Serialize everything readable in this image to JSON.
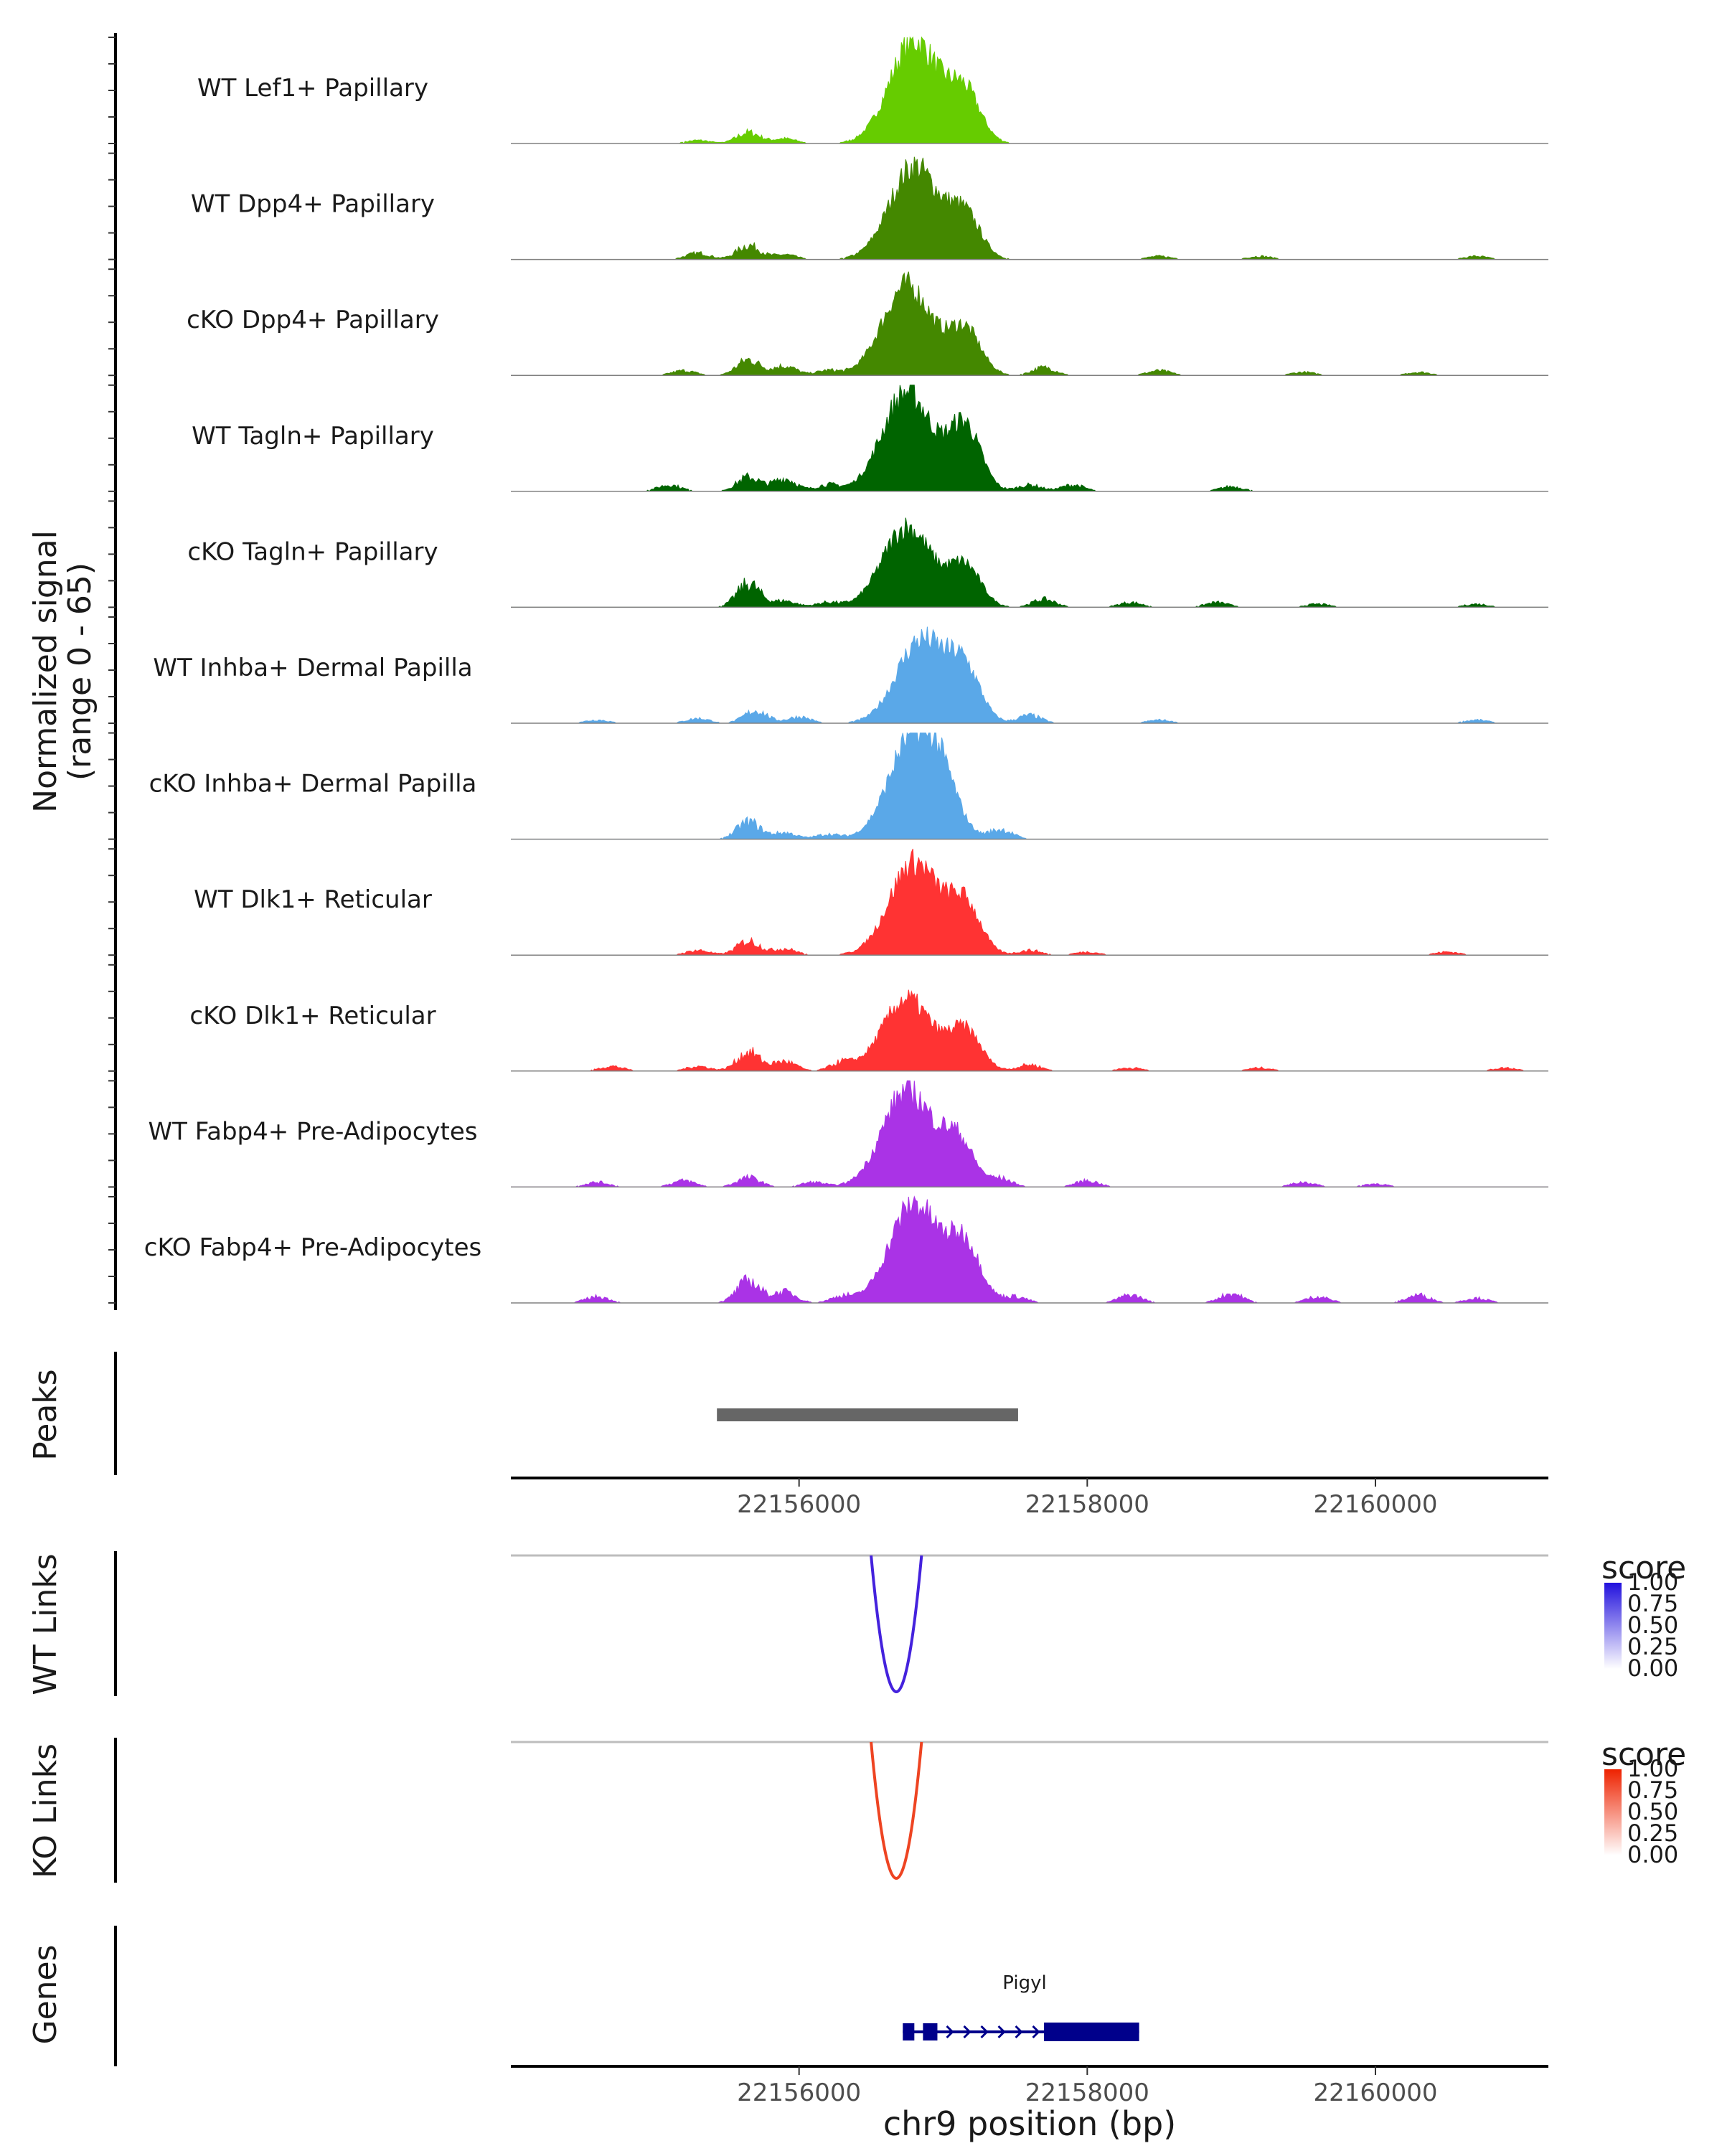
{
  "chart_data": {
    "type": "area",
    "chromosome": "chr9",
    "x_range_bp": [
      22154000,
      22161200
    ],
    "x_ticks": [
      22156000,
      22158000,
      22160000
    ],
    "x_tick_labels": [
      "22156000",
      "22158000",
      "22160000"
    ],
    "xlabel": "chr9 position (bp)",
    "coverage": {
      "ylabel_line1": "Normalized signal",
      "ylabel_line2": "(range 0 - 65)",
      "y_range": [
        0,
        65
      ],
      "tracks": [
        {
          "name": "WT Lef1+ Papillary",
          "color": "#66cc00",
          "background": [
            [
              22155300,
              2
            ],
            [
              22155650,
              7
            ],
            [
              22155900,
              3
            ]
          ],
          "peak_center": 22156800,
          "peak_height": 64,
          "shoulder": 22157150,
          "shoulder_height": 30
        },
        {
          "name": "WT Dpp4+ Papillary",
          "color": "#448800",
          "background": [
            [
              22155300,
              4
            ],
            [
              22155650,
              9
            ],
            [
              22155900,
              3
            ],
            [
              22158500,
              2
            ],
            [
              22159200,
              2
            ],
            [
              22160700,
              2
            ]
          ],
          "peak_center": 22156800,
          "peak_height": 58,
          "shoulder": 22157150,
          "shoulder_height": 26
        },
        {
          "name": "cKO Dpp4+ Papillary",
          "color": "#448800",
          "background": [
            [
              22155200,
              3
            ],
            [
              22155650,
              10
            ],
            [
              22155900,
              6
            ],
            [
              22156200,
              3
            ],
            [
              22157700,
              5
            ],
            [
              22158500,
              3
            ],
            [
              22159500,
              2
            ],
            [
              22160300,
              2
            ]
          ],
          "peak_center": 22156750,
          "peak_height": 56,
          "shoulder": 22157150,
          "shoulder_height": 28
        },
        {
          "name": "WT Tagln+ Papillary",
          "color": "#006400",
          "background": [
            [
              22155100,
              4
            ],
            [
              22155650,
              9
            ],
            [
              22155900,
              8
            ],
            [
              22156200,
              4
            ],
            [
              22157600,
              4
            ],
            [
              22157900,
              4
            ],
            [
              22159000,
              3
            ]
          ],
          "peak_center": 22156750,
          "peak_height": 62,
          "shoulder": 22157150,
          "shoulder_height": 40
        },
        {
          "name": "cKO Tagln+ Papillary",
          "color": "#006400",
          "background": [
            [
              22155650,
              15
            ],
            [
              22155900,
              4
            ],
            [
              22156200,
              3
            ],
            [
              22157700,
              5
            ],
            [
              22158300,
              3
            ],
            [
              22158900,
              3
            ],
            [
              22159600,
              2
            ],
            [
              22160700,
              2
            ]
          ],
          "peak_center": 22156750,
          "peak_height": 50,
          "shoulder": 22157150,
          "shoulder_height": 25
        },
        {
          "name": "WT Inhba+ Dermal Papilla",
          "color": "#5aa8e8",
          "background": [
            [
              22154600,
              2
            ],
            [
              22155300,
              3
            ],
            [
              22155700,
              8
            ],
            [
              22156000,
              4
            ],
            [
              22157600,
              5
            ],
            [
              22158500,
              2
            ],
            [
              22160700,
              2
            ]
          ],
          "peak_center": 22156850,
          "peak_height": 52,
          "shoulder": 22157150,
          "shoulder_height": 30
        },
        {
          "name": "cKO Inhba+ Dermal Papilla",
          "color": "#5aa8e8",
          "background": [
            [
              22155650,
              11
            ],
            [
              22155900,
              4
            ],
            [
              22156200,
              3
            ],
            [
              22157400,
              6
            ]
          ],
          "peak_center": 22156800,
          "peak_height": 65,
          "shoulder": 22157000,
          "shoulder_height": 20
        },
        {
          "name": "WT Dlk1+ Reticular",
          "color": "#ff3333",
          "background": [
            [
              22155300,
              3
            ],
            [
              22155650,
              9
            ],
            [
              22155900,
              4
            ],
            [
              22157600,
              3
            ],
            [
              22158000,
              2
            ],
            [
              22160500,
              2
            ]
          ],
          "peak_center": 22156800,
          "peak_height": 58,
          "shoulder": 22157150,
          "shoulder_height": 30
        },
        {
          "name": "cKO Dlk1+ Reticular",
          "color": "#ff3333",
          "background": [
            [
              22154700,
              3
            ],
            [
              22155300,
              3
            ],
            [
              22155650,
              12
            ],
            [
              22155900,
              6
            ],
            [
              22156300,
              5
            ],
            [
              22157600,
              4
            ],
            [
              22158300,
              2
            ],
            [
              22159200,
              2
            ],
            [
              22160900,
              2
            ]
          ],
          "peak_center": 22156750,
          "peak_height": 45,
          "shoulder": 22157150,
          "shoulder_height": 25
        },
        {
          "name": "WT Fabp4+ Pre-Adipocytes",
          "color": "#aa33e6",
          "background": [
            [
              22154600,
              3
            ],
            [
              22155200,
              4
            ],
            [
              22155650,
              6
            ],
            [
              22156100,
              3
            ],
            [
              22157400,
              5
            ],
            [
              22158000,
              4
            ],
            [
              22159500,
              3
            ],
            [
              22160000,
              2
            ]
          ],
          "peak_center": 22156750,
          "peak_height": 60,
          "shoulder": 22157100,
          "shoulder_height": 28
        },
        {
          "name": "cKO Fabp4+ Pre-Adipocytes",
          "color": "#aa33e6",
          "background": [
            [
              22154600,
              4
            ],
            [
              22155650,
              14
            ],
            [
              22155900,
              7
            ],
            [
              22156300,
              4
            ],
            [
              22157500,
              4
            ],
            [
              22158300,
              5
            ],
            [
              22159000,
              6
            ],
            [
              22159600,
              4
            ],
            [
              22160300,
              5
            ],
            [
              22160700,
              3
            ]
          ],
          "peak_center": 22156800,
          "peak_height": 62,
          "shoulder": 22157150,
          "shoulder_height": 35
        }
      ]
    },
    "peaks": {
      "label": "Peaks",
      "color": "#666666",
      "regions": [
        [
          22155430,
          22157520
        ]
      ]
    },
    "links": [
      {
        "label": "WT Links",
        "color": "#4422dd",
        "start": 22156500,
        "end": 22156850,
        "score": 1.0,
        "legend_title": "score",
        "legend_ticks": [
          "1.00",
          "0.75",
          "0.50",
          "0.25",
          "0.00"
        ],
        "legend_gradient": [
          "#ffffff",
          "#2211dd"
        ]
      },
      {
        "label": "KO Links",
        "color": "#ee4422",
        "start": 22156500,
        "end": 22156850,
        "score": 1.0,
        "legend_title": "score",
        "legend_ticks": [
          "1.00",
          "0.75",
          "0.50",
          "0.25",
          "0.00"
        ],
        "legend_gradient": [
          "#ffffff",
          "#ee2200"
        ]
      }
    ],
    "genes": {
      "label": "Genes",
      "color": "#00008b",
      "items": [
        {
          "name": "Pigyl",
          "start": 22156720,
          "end": 22158360,
          "exons": [
            [
              22156720,
              22156800
            ],
            [
              22156860,
              22156960
            ],
            [
              22157700,
              22158360
            ]
          ]
        }
      ]
    }
  }
}
